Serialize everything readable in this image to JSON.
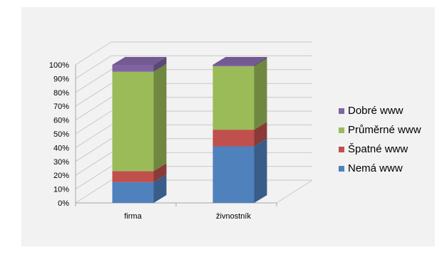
{
  "chart_data": {
    "type": "bar",
    "stacked": true,
    "percent": true,
    "three_d": true,
    "title": "",
    "xlabel": "",
    "ylabel": "",
    "categories": [
      "firma",
      "živnostník"
    ],
    "ylim": [
      0,
      100
    ],
    "yticks": [
      "0%",
      "10%",
      "20%",
      "30%",
      "40%",
      "50%",
      "60%",
      "70%",
      "80%",
      "90%",
      "100%"
    ],
    "grid": true,
    "legend_position": "right",
    "series": [
      {
        "name": "Nemá www",
        "color": "#4f81bd",
        "values": [
          15,
          41
        ]
      },
      {
        "name": "Špatné www",
        "color": "#c0504d",
        "values": [
          8,
          12
        ]
      },
      {
        "name": "Průměrné www",
        "color": "#9bbb59",
        "values": [
          72,
          46
        ]
      },
      {
        "name": "Dobré www",
        "color": "#8064a2",
        "values": [
          5,
          1
        ]
      }
    ]
  }
}
